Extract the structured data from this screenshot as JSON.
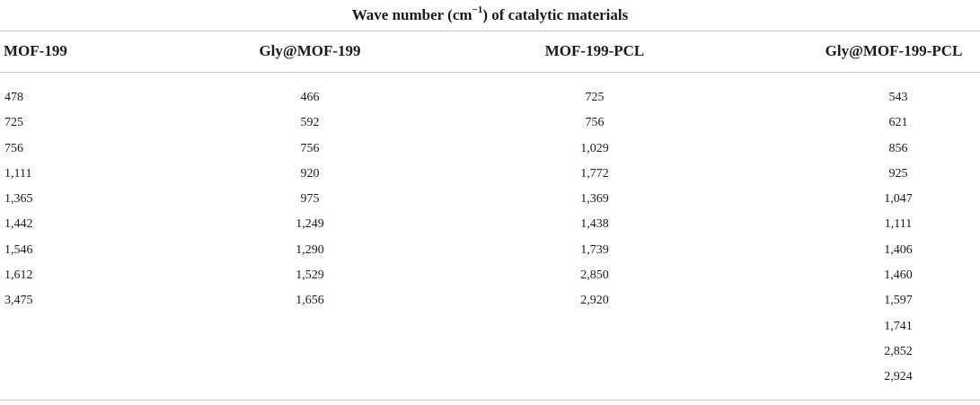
{
  "table": {
    "title_main": "Wave number (cm",
    "title_sup": "−1",
    "title_rest": ") of catalytic materials",
    "headers": [
      "MOF-199",
      "Gly@MOF-199",
      "MOF-199-PCL",
      "Gly@MOF-199-PCL"
    ],
    "columns": [
      [
        "478",
        "725",
        "756",
        "1,111",
        "1,365",
        "1,442",
        "1,546",
        "1,612",
        "3,475"
      ],
      [
        "466",
        "592",
        "756",
        "920",
        "975",
        "1,249",
        "1,290",
        "1,529",
        "1,656"
      ],
      [
        "725",
        "756",
        "1,029",
        "1,772",
        "1,369",
        "1,438",
        "1,739",
        "2,850",
        "2,920"
      ],
      [
        "543",
        "621",
        "856",
        "925",
        "1,047",
        "1,111",
        "1,406",
        "1,460",
        "1,597",
        "1,741",
        "2,852",
        "2,924"
      ]
    ]
  }
}
